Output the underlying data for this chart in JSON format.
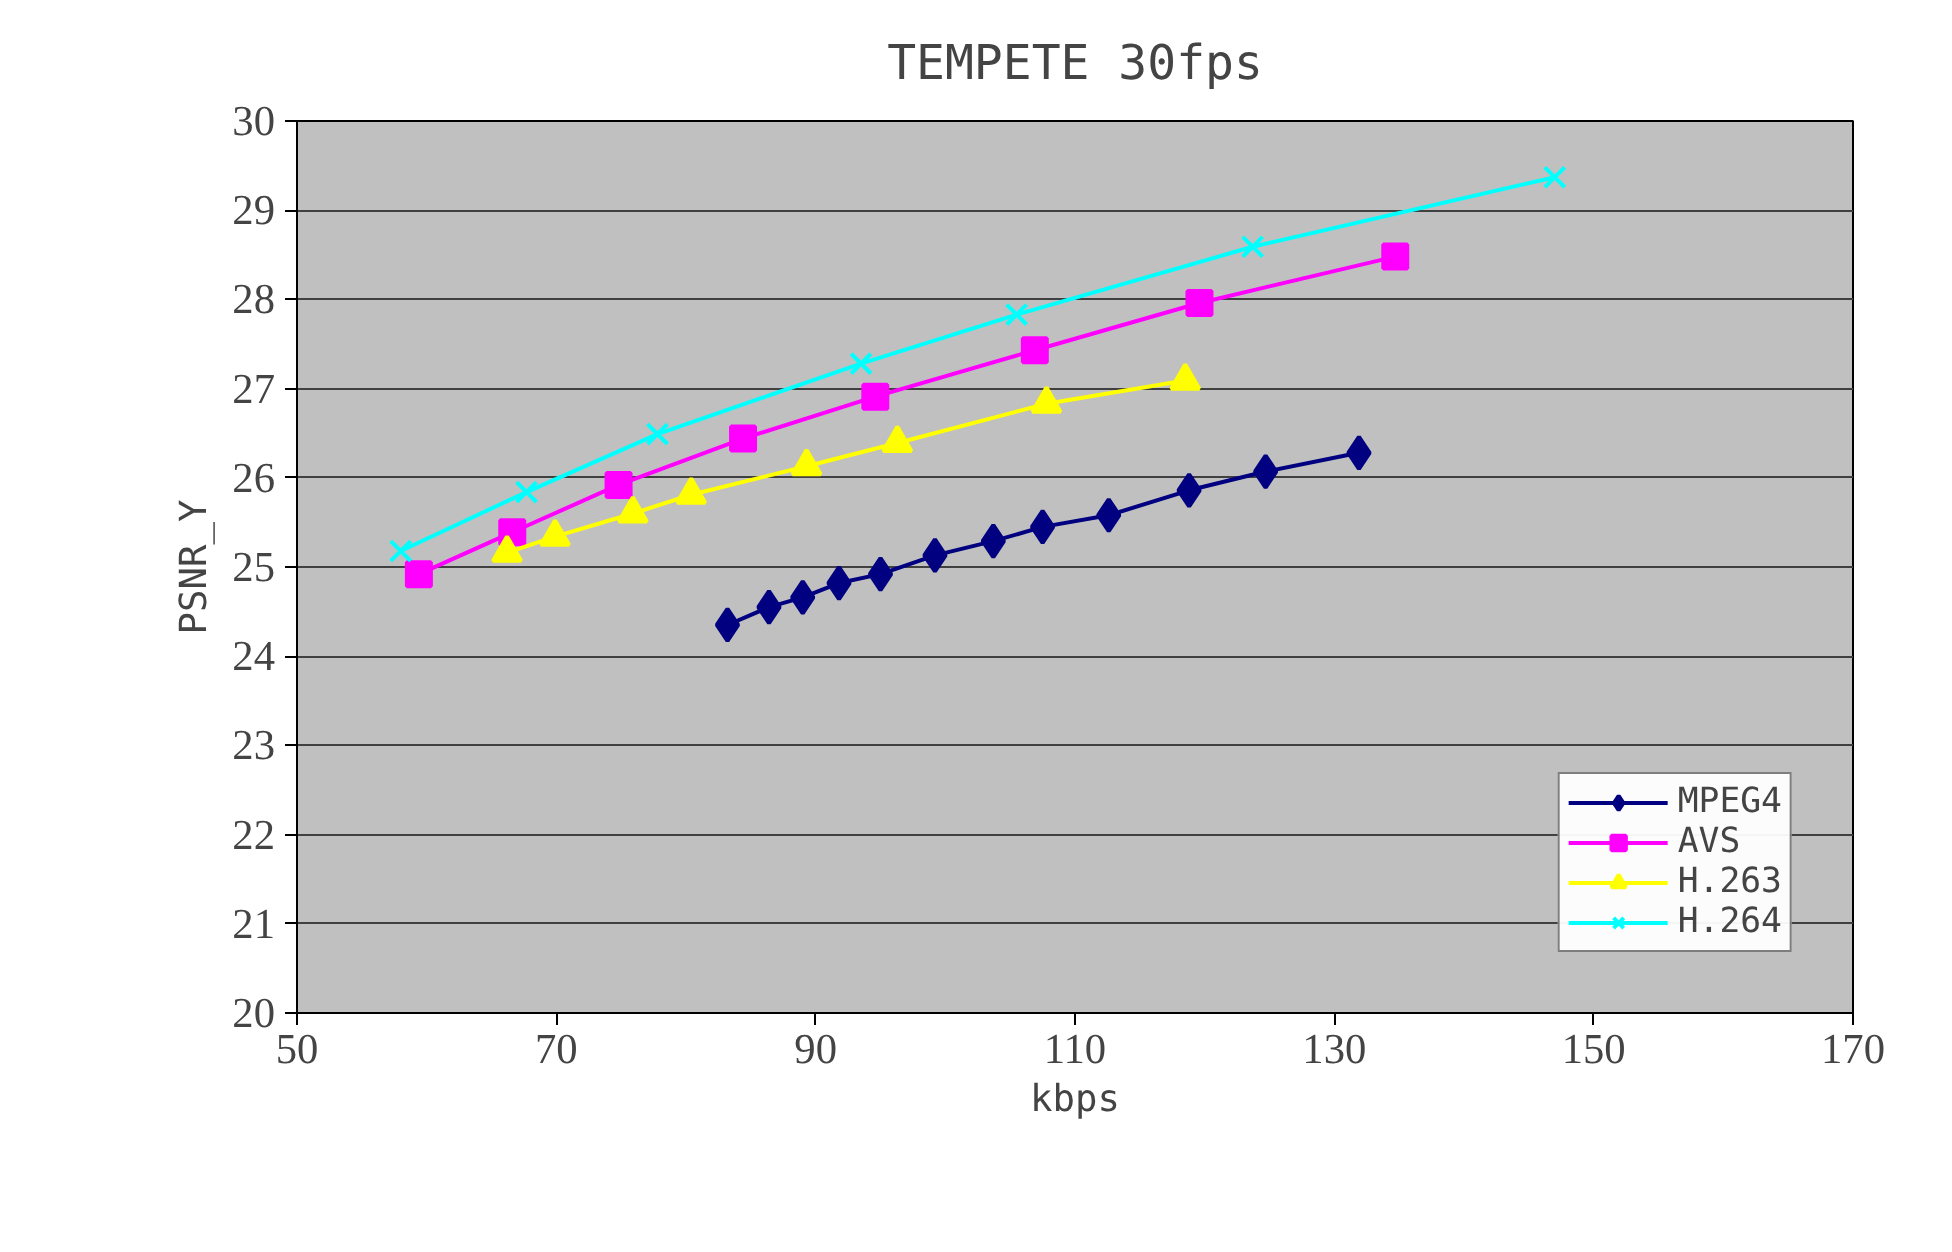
{
  "chart_data": {
    "type": "line",
    "title": "TEMPETE 30fps",
    "xlabel": "kbps",
    "ylabel": "PSNR_Y",
    "xlim": [
      50,
      170
    ],
    "xticks": [
      50,
      70,
      90,
      110,
      130,
      150,
      170
    ],
    "ylim": [
      20,
      30
    ],
    "yticks": [
      20,
      21,
      22,
      23,
      24,
      25,
      26,
      27,
      28,
      29,
      30
    ],
    "grid": "y",
    "legend": "bottom right",
    "series": [
      {
        "name": "MPEG4",
        "color": "#000080",
        "marker": "diamond",
        "x": [
          83.2,
          86.4,
          89.0,
          91.8,
          95.0,
          99.2,
          103.7,
          107.5,
          112.6,
          118.8,
          124.7,
          131.9
        ],
        "values": [
          24.35,
          24.55,
          24.66,
          24.82,
          24.92,
          25.13,
          25.29,
          25.45,
          25.58,
          25.86,
          26.07,
          26.28
        ]
      },
      {
        "name": "AVS",
        "color": "#ff00ff",
        "marker": "square",
        "x": [
          59.4,
          66.6,
          74.8,
          84.4,
          94.6,
          106.9,
          119.6,
          134.7
        ],
        "values": [
          24.92,
          25.39,
          25.92,
          26.44,
          26.91,
          27.43,
          27.96,
          28.48
        ]
      },
      {
        "name": "H.263",
        "color": "#ffff00",
        "marker": "triangle",
        "x": [
          66.2,
          69.9,
          75.9,
          80.4,
          89.3,
          96.3,
          107.8,
          118.5
        ],
        "values": [
          25.16,
          25.34,
          25.6,
          25.81,
          26.13,
          26.39,
          26.83,
          27.09
        ]
      },
      {
        "name": "H.264",
        "color": "#00ffff",
        "marker": "cross",
        "x": [
          58.0,
          67.7,
          77.8,
          93.5,
          105.5,
          123.7,
          147.0
        ],
        "values": [
          25.18,
          25.84,
          26.49,
          27.28,
          27.83,
          28.59,
          29.37
        ]
      }
    ]
  }
}
